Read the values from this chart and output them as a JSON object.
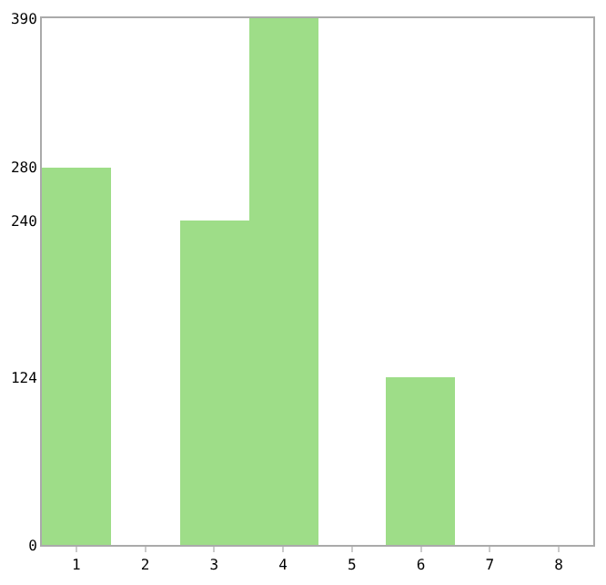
{
  "chart_data": {
    "type": "bar",
    "categories": [
      "1",
      "2",
      "3",
      "4",
      "5",
      "6",
      "7",
      "8"
    ],
    "values": [
      280,
      0,
      240,
      390,
      0,
      124,
      0,
      0
    ],
    "color": "#9edd88",
    "ylim": [
      0,
      390
    ],
    "yticks": [
      0,
      124,
      240,
      280,
      390
    ]
  }
}
